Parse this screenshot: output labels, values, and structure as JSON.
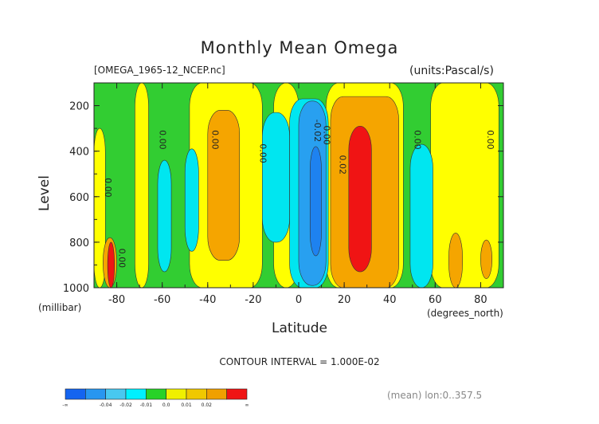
{
  "chart_data": {
    "type": "contour",
    "title": "Monthly Mean Omega",
    "dataset_label": "[OMEGA_1965-12_NCEP.nc]",
    "units_label": "(units:Pascal/s)",
    "xlabel": "Latitude",
    "x_units": "(degrees_north)",
    "ylabel": "Level",
    "y_units": "(millibar)",
    "xlim": [
      -90,
      90
    ],
    "ylim": [
      1000,
      100
    ],
    "x_ticks": [
      -80,
      -60,
      -40,
      -20,
      0,
      20,
      40,
      60,
      80
    ],
    "y_ticks": [
      200,
      400,
      600,
      800,
      1000
    ],
    "contour_interval_text": "CONTOUR INTERVAL = 1.000E-02",
    "averaging_note": "(mean) lon:0..357.5",
    "contour_labels": [
      {
        "text": "0.00",
        "lat": -84,
        "level": 560
      },
      {
        "text": "0.00",
        "lat": -78,
        "level": 870
      },
      {
        "text": "0.00",
        "lat": -60,
        "level": 350
      },
      {
        "text": "0.00",
        "lat": -37,
        "level": 350
      },
      {
        "text": "0.00",
        "lat": -16,
        "level": 410
      },
      {
        "text": "-0.02",
        "lat": 8,
        "level": 310
      },
      {
        "text": "0.00",
        "lat": 12,
        "level": 330
      },
      {
        "text": "0.02",
        "lat": 19,
        "level": 460
      },
      {
        "text": "0.00",
        "lat": 52,
        "level": 350
      },
      {
        "text": "0.00",
        "lat": 84,
        "level": 350
      }
    ],
    "regions": [
      {
        "bin": "0.0",
        "lat": [
          -90,
          90
        ],
        "level": [
          100,
          1000
        ]
      },
      {
        "bin": "0.01",
        "lat": [
          -90,
          -85
        ],
        "level": [
          300,
          1000
        ]
      },
      {
        "bin": "0.01",
        "lat": [
          -72,
          -66
        ],
        "level": [
          100,
          1000
        ]
      },
      {
        "bin": "0.01",
        "lat": [
          -48,
          -16
        ],
        "level": [
          100,
          1000
        ]
      },
      {
        "bin": "0.01",
        "lat": [
          -11,
          0
        ],
        "level": [
          100,
          1000
        ]
      },
      {
        "bin": "0.01",
        "lat": [
          12,
          46
        ],
        "level": [
          100,
          1000
        ]
      },
      {
        "bin": "0.01",
        "lat": [
          58,
          88
        ],
        "level": [
          100,
          1000
        ]
      },
      {
        "bin": "0.02",
        "lat": [
          -40,
          -26
        ],
        "level": [
          220,
          880
        ]
      },
      {
        "bin": "0.02",
        "lat": [
          14,
          44
        ],
        "level": [
          160,
          1000
        ]
      },
      {
        "bin": "0.02",
        "lat": [
          -86,
          -80
        ],
        "level": [
          780,
          1000
        ]
      },
      {
        "bin": "0.02",
        "lat": [
          66,
          72
        ],
        "level": [
          760,
          1000
        ]
      },
      {
        "bin": "0.02",
        "lat": [
          80,
          85
        ],
        "level": [
          790,
          960
        ]
      },
      {
        "bin": "0.03",
        "lat": [
          22,
          32
        ],
        "level": [
          290,
          930
        ]
      },
      {
        "bin": "0.03",
        "lat": [
          -84,
          -81
        ],
        "level": [
          800,
          1000
        ]
      },
      {
        "bin": "-0.01",
        "lat": [
          -62,
          -56
        ],
        "level": [
          440,
          930
        ]
      },
      {
        "bin": "-0.01",
        "lat": [
          -50,
          -44
        ],
        "level": [
          390,
          840
        ]
      },
      {
        "bin": "-0.01",
        "lat": [
          -16,
          -4
        ],
        "level": [
          230,
          800
        ]
      },
      {
        "bin": "-0.01",
        "lat": [
          -4,
          13
        ],
        "level": [
          170,
          1000
        ]
      },
      {
        "bin": "-0.01",
        "lat": [
          49,
          59
        ],
        "level": [
          370,
          1000
        ]
      },
      {
        "bin": "-0.02",
        "lat": [
          0,
          12
        ],
        "level": [
          180,
          990
        ]
      },
      {
        "bin": "-0.03",
        "lat": [
          5,
          10
        ],
        "level": [
          380,
          860
        ]
      }
    ]
  },
  "colorbar": {
    "bins": [
      "-0.05",
      "-0.04",
      "-0.03",
      "-0.02",
      "-0.01",
      "0.0",
      "0.01",
      "0.02",
      "0.03"
    ],
    "colors": [
      "#1464f0",
      "#2896f0",
      "#48c8f0",
      "#00f0ff",
      "#28d228",
      "#f0f000",
      "#f0c800",
      "#f0a000",
      "#f01414"
    ],
    "labels": [
      "-∞",
      "-0.04",
      "-0.02",
      "-0.01",
      "0.0",
      "0.01",
      "0.02",
      "∞"
    ]
  },
  "bin_colors": {
    "-0.03": "#1e82f0",
    "-0.02": "#28a0f0",
    "-0.01": "#00e6f0",
    "0.0": "#32cd32",
    "0.01": "#ffff00",
    "0.02": "#f5a500",
    "0.03": "#f01414"
  }
}
